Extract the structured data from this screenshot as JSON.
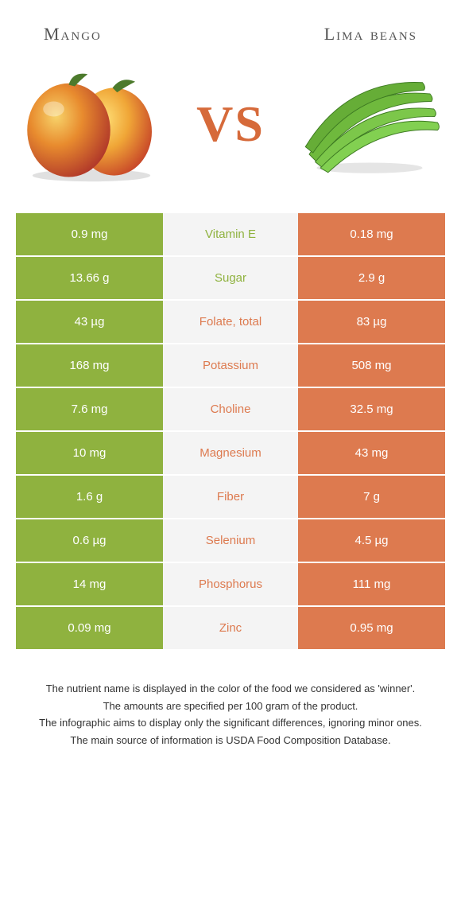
{
  "header": {
    "left_title": "Mango",
    "right_title": "Lima beans"
  },
  "vs_label": "VS",
  "colors": {
    "mango": "#8fb23f",
    "lima": "#dd7a4f",
    "mid_bg": "#f4f4f4"
  },
  "rows": [
    {
      "nutrient": "Vitamin E",
      "left": "0.9 mg",
      "right": "0.18 mg",
      "winner": "mango"
    },
    {
      "nutrient": "Sugar",
      "left": "13.66 g",
      "right": "2.9 g",
      "winner": "mango"
    },
    {
      "nutrient": "Folate, total",
      "left": "43 µg",
      "right": "83 µg",
      "winner": "lima"
    },
    {
      "nutrient": "Potassium",
      "left": "168 mg",
      "right": "508 mg",
      "winner": "lima"
    },
    {
      "nutrient": "Choline",
      "left": "7.6 mg",
      "right": "32.5 mg",
      "winner": "lima"
    },
    {
      "nutrient": "Magnesium",
      "left": "10 mg",
      "right": "43 mg",
      "winner": "lima"
    },
    {
      "nutrient": "Fiber",
      "left": "1.6 g",
      "right": "7 g",
      "winner": "lima"
    },
    {
      "nutrient": "Selenium",
      "left": "0.6 µg",
      "right": "4.5 µg",
      "winner": "lima"
    },
    {
      "nutrient": "Phosphorus",
      "left": "14 mg",
      "right": "111 mg",
      "winner": "lima"
    },
    {
      "nutrient": "Zinc",
      "left": "0.09 mg",
      "right": "0.95 mg",
      "winner": "lima"
    }
  ],
  "footnotes": [
    "The nutrient name is displayed in the color of the food we considered as 'winner'.",
    "The amounts are specified per 100 gram of the product.",
    "The infographic aims to display only the significant differences, ignoring minor ones.",
    "The main source of information is USDA Food Composition Database."
  ]
}
